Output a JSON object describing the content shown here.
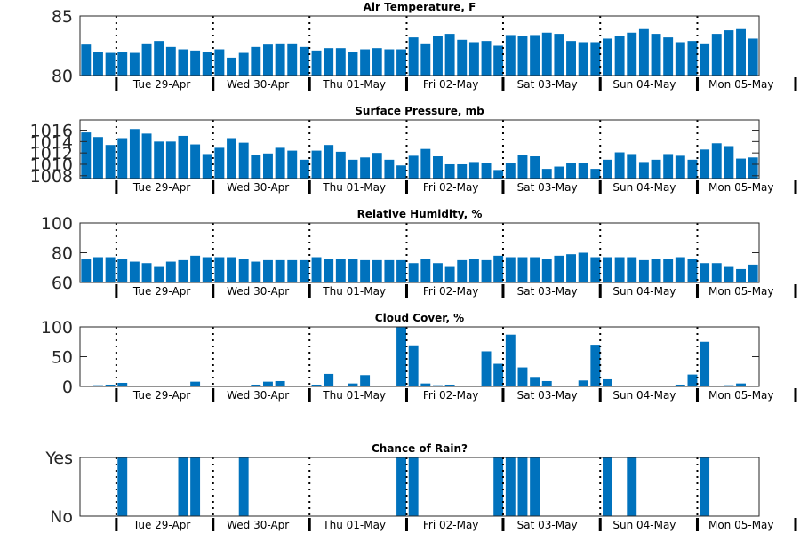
{
  "chart_data": [
    {
      "type": "bar",
      "title": "Air Temperature, F",
      "ylim": [
        80,
        85
      ],
      "yticks": [
        {
          "v": 80,
          "label": "80"
        },
        {
          "v": 85,
          "label": "85"
        }
      ],
      "right_ticks": [
        80,
        85
      ],
      "day_labels": [
        "Tue 29-Apr",
        "Wed 30-Apr",
        "Thu 01-May",
        "Fri 02-May",
        "Sat 03-May",
        "Sun 04-May",
        "Mon 05-May"
      ],
      "values": [
        82.6,
        82.0,
        81.9,
        82.0,
        81.9,
        82.7,
        82.9,
        82.4,
        82.2,
        82.1,
        82.0,
        82.2,
        81.5,
        81.9,
        82.4,
        82.6,
        82.7,
        82.7,
        82.4,
        82.1,
        82.3,
        82.3,
        82.0,
        82.2,
        82.3,
        82.2,
        82.2,
        83.2,
        82.7,
        83.3,
        83.5,
        83.0,
        82.8,
        82.9,
        82.5,
        83.4,
        83.3,
        83.4,
        83.6,
        83.5,
        82.9,
        82.8,
        82.8,
        83.1,
        83.3,
        83.6,
        83.9,
        83.5,
        83.2,
        82.8,
        82.9,
        82.7,
        83.5,
        83.8,
        83.9,
        83.1
      ],
      "grid": false,
      "legend": "none"
    },
    {
      "type": "bar",
      "title": "Surface Pressure, mb",
      "ylim": [
        1007.5,
        1017.8
      ],
      "yticks": [
        {
          "v": 1008,
          "label": "1008"
        },
        {
          "v": 1010,
          "label": "1010"
        },
        {
          "v": 1012,
          "label": "1012"
        },
        {
          "v": 1014,
          "label": "1014"
        },
        {
          "v": 1016,
          "label": "1016"
        }
      ],
      "right_ticks": [
        1008,
        1010,
        1012,
        1014,
        1016
      ],
      "day_labels": [
        "Tue 29-Apr",
        "Wed 30-Apr",
        "Thu 01-May",
        "Fri 02-May",
        "Sat 03-May",
        "Sun 04-May",
        "Mon 05-May"
      ],
      "values": [
        1015.6,
        1014.8,
        1013.4,
        1014.6,
        1016.2,
        1015.4,
        1014.0,
        1014.0,
        1015.0,
        1013.5,
        1011.8,
        1012.9,
        1014.6,
        1013.8,
        1011.6,
        1011.9,
        1012.9,
        1012.4,
        1010.8,
        1012.4,
        1013.4,
        1012.2,
        1010.8,
        1011.2,
        1012.0,
        1010.8,
        1009.8,
        1011.5,
        1012.7,
        1011.4,
        1010.0,
        1010.0,
        1010.4,
        1010.2,
        1009.0,
        1010.2,
        1011.7,
        1011.4,
        1009.2,
        1009.6,
        1010.3,
        1010.3,
        1009.2,
        1010.8,
        1012.1,
        1011.8,
        1010.4,
        1010.8,
        1011.8,
        1011.5,
        1010.8,
        1012.6,
        1013.7,
        1013.2,
        1011.0,
        1011.2
      ],
      "grid": false,
      "legend": "none"
    },
    {
      "type": "bar",
      "title": "Relative Humidity, %",
      "ylim": [
        60,
        100
      ],
      "yticks": [
        {
          "v": 60,
          "label": "60"
        },
        {
          "v": 80,
          "label": "80"
        },
        {
          "v": 100,
          "label": "100"
        }
      ],
      "right_ticks": [
        60,
        80,
        100
      ],
      "day_labels": [
        "Tue 29-Apr",
        "Wed 30-Apr",
        "Thu 01-May",
        "Fri 02-May",
        "Sat 03-May",
        "Sun 04-May",
        "Mon 05-May"
      ],
      "values": [
        76,
        77,
        77,
        76,
        74,
        73,
        71,
        74,
        75,
        78,
        77,
        77,
        77,
        76,
        74,
        75,
        75,
        75,
        75,
        77,
        76,
        76,
        76,
        75,
        75,
        75,
        75,
        73,
        76,
        73,
        71,
        75,
        76,
        75,
        78,
        77,
        77,
        77,
        76,
        78,
        79,
        80,
        77,
        77,
        77,
        77,
        75,
        76,
        76,
        77,
        76,
        73,
        73,
        71,
        69,
        72
      ],
      "grid": false,
      "legend": "none"
    },
    {
      "type": "bar",
      "title": "Cloud Cover, %",
      "ylim": [
        0,
        100
      ],
      "yticks": [
        {
          "v": 0,
          "label": "0"
        },
        {
          "v": 50,
          "label": "50"
        },
        {
          "v": 100,
          "label": "100"
        }
      ],
      "right_ticks": [
        0,
        50,
        100
      ],
      "day_labels": [
        "Tue 29-Apr",
        "Wed 30-Apr",
        "Thu 01-May",
        "Fri 02-May",
        "Sat 03-May",
        "Sun 04-May",
        "Mon 05-May"
      ],
      "values": [
        0,
        2,
        3,
        6,
        0,
        0,
        0,
        0,
        0,
        8,
        0,
        0,
        0,
        0,
        3,
        8,
        9,
        0,
        0,
        3,
        21,
        0,
        5,
        19,
        0,
        0,
        100,
        69,
        5,
        2,
        3,
        0,
        0,
        59,
        38,
        87,
        32,
        16,
        9,
        0,
        0,
        10,
        70,
        12,
        0,
        0,
        0,
        0,
        0,
        3,
        20,
        75,
        0,
        2,
        5,
        0
      ],
      "grid": false,
      "legend": "none"
    },
    {
      "type": "bar",
      "title": "Chance of Rain?",
      "ylim": [
        0,
        1
      ],
      "yticks": [
        {
          "v": 0,
          "label": "No"
        },
        {
          "v": 1,
          "label": "Yes"
        }
      ],
      "right_ticks": [],
      "day_labels": [
        "Tue 29-Apr",
        "Wed 30-Apr",
        "Thu 01-May",
        "Fri 02-May",
        "Sat 03-May",
        "Sun 04-May",
        "Mon 05-May"
      ],
      "values": [
        0,
        0,
        0,
        1,
        0,
        0,
        0,
        0,
        1,
        1,
        0,
        0,
        0,
        1,
        0,
        0,
        0,
        0,
        0,
        0,
        0,
        0,
        0,
        0,
        0,
        0,
        1,
        1,
        0,
        0,
        0,
        0,
        0,
        0,
        1,
        1,
        1,
        1,
        0,
        0,
        0,
        0,
        0,
        1,
        0,
        1,
        0,
        0,
        0,
        0,
        0,
        1,
        0,
        0,
        0,
        0
      ],
      "grid": false,
      "legend": "none"
    }
  ],
  "colors": {
    "bar": "#0072BD",
    "axis": "#262626",
    "text": "#000000"
  }
}
